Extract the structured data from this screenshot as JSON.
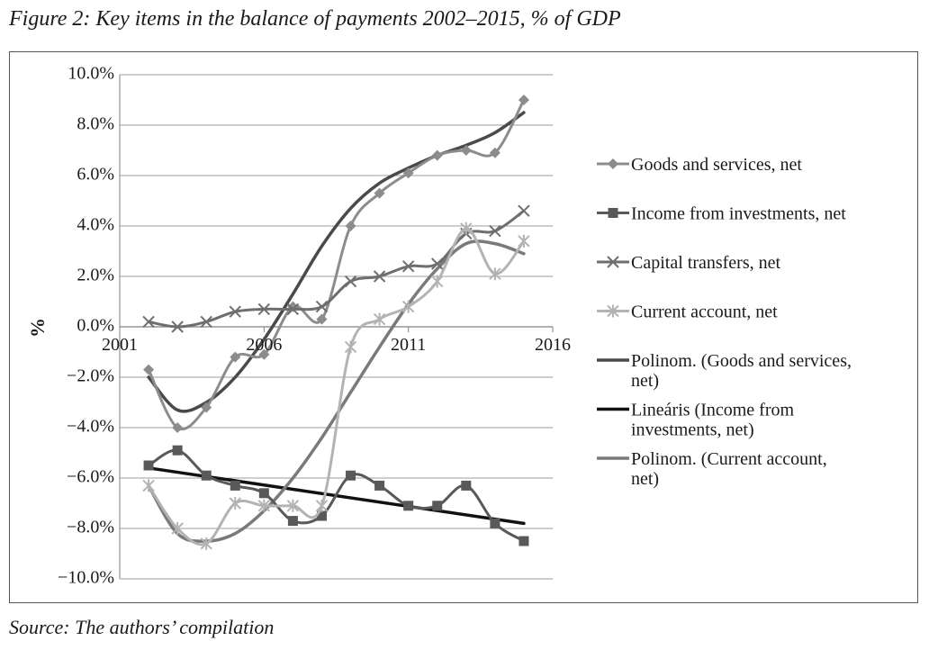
{
  "figure": {
    "caption": "Figure 2: Key items in the balance of payments 2002–2015, % of GDP",
    "source": "Source: The authors’ compilation"
  },
  "chart_data": {
    "type": "line",
    "title": "Key items in the balance of payments 2002–2015, % of GDP",
    "xlabel": "",
    "ylabel": "%",
    "xlim": [
      2001,
      2016
    ],
    "ylim": [
      -10,
      10
    ],
    "x_ticks": [
      2001,
      2006,
      2011,
      2016
    ],
    "x_tick_labels": [
      "2001",
      "2006",
      "2011",
      "2016"
    ],
    "y_ticks": [
      10,
      8,
      6,
      4,
      2,
      0,
      -2,
      -4,
      -6,
      -8,
      -10
    ],
    "y_tick_labels": [
      "10.0%",
      "8.0%",
      "6.0%",
      "4.0%",
      "2.0%",
      "0.0%",
      "−2.0%",
      "−4.0%",
      "−6.0%",
      "−8.0%",
      "−10.0%"
    ],
    "grid": true,
    "legend_position": "right",
    "x": [
      2002,
      2003,
      2004,
      2005,
      2006,
      2007,
      2008,
      2009,
      2010,
      2011,
      2012,
      2013,
      2014,
      2015
    ],
    "series": [
      {
        "name": "Goods and services, net",
        "marker": "diamond",
        "color": "#8c8c8c",
        "values": [
          -1.7,
          -4.0,
          -3.2,
          -1.2,
          -1.1,
          0.8,
          0.3,
          4.0,
          5.3,
          6.1,
          6.8,
          7.0,
          6.9,
          9.0
        ]
      },
      {
        "name": "Income from investments, net",
        "marker": "square",
        "color": "#595959",
        "values": [
          -5.5,
          -4.9,
          -5.9,
          -6.3,
          -6.6,
          -7.7,
          -7.5,
          -5.9,
          -6.3,
          -7.1,
          -7.1,
          -6.3,
          -7.8,
          -8.5
        ]
      },
      {
        "name": "Capital transfers, net",
        "marker": "x",
        "color": "#6e6e6e",
        "values": [
          0.2,
          0.0,
          0.2,
          0.6,
          0.7,
          0.7,
          0.8,
          1.8,
          2.0,
          2.4,
          2.5,
          3.7,
          3.8,
          4.6
        ]
      },
      {
        "name": "Current account, net",
        "marker": "star",
        "color": "#b3b3b3",
        "values": [
          -6.3,
          -8.0,
          -8.6,
          -7.0,
          -7.1,
          -7.1,
          -7.1,
          -0.8,
          0.3,
          0.8,
          1.8,
          3.9,
          2.1,
          3.4
        ]
      }
    ],
    "trendlines": [
      {
        "name": "Polinom. (Goods and services, net)",
        "kind": "polynomial",
        "of": "Goods and services, net",
        "color": "#4a4a4a",
        "values": [
          -2.0,
          -3.3,
          -3.0,
          -2.0,
          -0.5,
          1.3,
          3.2,
          4.7,
          5.7,
          6.3,
          6.8,
          7.2,
          7.7,
          8.5
        ]
      },
      {
        "name": "Lineáris (Income from investments, net)",
        "kind": "linear",
        "of": "Income from investments, net",
        "color": "#111111",
        "values": [
          -5.6,
          -5.8,
          -6.0,
          -6.1,
          -6.3,
          -6.5,
          -6.6,
          -6.8,
          -7.0,
          -7.1,
          -7.3,
          -7.5,
          -7.7,
          -7.8
        ]
      },
      {
        "name": "Polinom. (Current account, net)",
        "kind": "polynomial",
        "of": "Current account, net",
        "color": "#7a7a7a",
        "values": [
          -6.3,
          -8.2,
          -8.5,
          -8.2,
          -7.3,
          -6.0,
          -4.4,
          -2.6,
          -0.8,
          0.9,
          2.3,
          3.3,
          3.3,
          2.9
        ]
      }
    ],
    "legend": [
      "Goods and services, net",
      "Income from investments, net",
      "Capital transfers, net",
      "Current account, net",
      "Polinom. (Goods and services, net)",
      "Lineáris (Income from investments, net)",
      "Polinom. (Current account, net)"
    ],
    "legend_lines": [
      [
        "Goods and services, net"
      ],
      [
        "Income from investments, net"
      ],
      [
        "Capital transfers, net"
      ],
      [
        "Current account, net"
      ],
      [
        "Polinom. (Goods and services,",
        "net)"
      ],
      [
        "Lineáris (Income from",
        "investments, net)"
      ],
      [
        "Polinom. (Current account,",
        "net)"
      ]
    ],
    "legend_styles": [
      {
        "color": "#8c8c8c",
        "marker": "diamond",
        "width": 3
      },
      {
        "color": "#595959",
        "marker": "square",
        "width": 3
      },
      {
        "color": "#6e6e6e",
        "marker": "x",
        "width": 3
      },
      {
        "color": "#b3b3b3",
        "marker": "star",
        "width": 3
      },
      {
        "color": "#4a4a4a",
        "marker": "none",
        "width": 3.5
      },
      {
        "color": "#111111",
        "marker": "none",
        "width": 3.5
      },
      {
        "color": "#7a7a7a",
        "marker": "none",
        "width": 3.5
      }
    ]
  }
}
